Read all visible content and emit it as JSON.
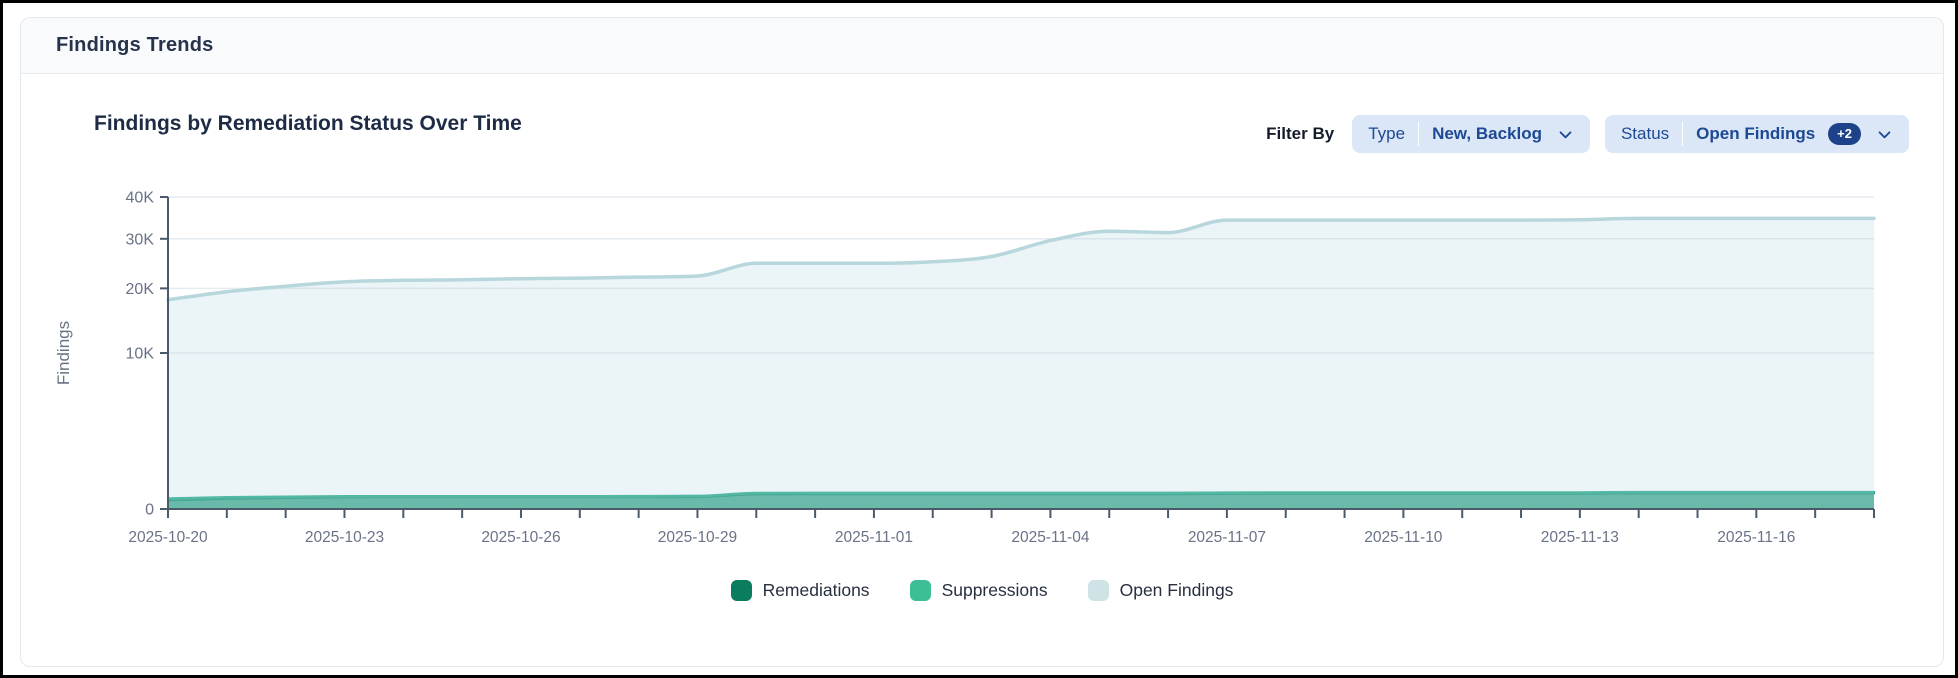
{
  "window": {
    "title": "Findings Trends"
  },
  "filters": {
    "label": "Filter By",
    "type": {
      "label": "Type",
      "value": "New, Backlog"
    },
    "status": {
      "label": "Status",
      "value": "Open Findings",
      "extra_badge": "+2"
    }
  },
  "legend": [
    {
      "label": "Remediations",
      "color": "#0b7c5e"
    },
    {
      "label": "Suppressions",
      "color": "#3cbf97"
    },
    {
      "label": "Open Findings",
      "color": "#cfe3e6"
    }
  ],
  "colors": {
    "axis": "#4b5a6b",
    "grid": "#e6ebf0",
    "tick_text": "#697386",
    "badge_bg": "#1d4289",
    "pill_bg": "#dbe7f6",
    "pill_text": "#1d4994"
  },
  "chart_data": {
    "type": "area",
    "title": "Findings by Remediation Status Over Time",
    "xlabel": "",
    "ylabel": "Findings",
    "y_scale": "sqrt",
    "ylim": [
      0,
      40000
    ],
    "grid": "horizontal",
    "legend_position": "bottom",
    "y_ticks": [
      {
        "value": 0,
        "label": "0"
      },
      {
        "value": 10000,
        "label": "10K"
      },
      {
        "value": 20000,
        "label": "20K"
      },
      {
        "value": 30000,
        "label": "30K"
      },
      {
        "value": 40000,
        "label": "40K"
      }
    ],
    "x_label_every_days": 3,
    "x": [
      "2025-10-20",
      "2025-10-21",
      "2025-10-22",
      "2025-10-23",
      "2025-10-24",
      "2025-10-25",
      "2025-10-26",
      "2025-10-27",
      "2025-10-28",
      "2025-10-29",
      "2025-10-30",
      "2025-10-31",
      "2025-11-01",
      "2025-11-02",
      "2025-11-03",
      "2025-11-04",
      "2025-11-05",
      "2025-11-06",
      "2025-11-07",
      "2025-11-08",
      "2025-11-09",
      "2025-11-10",
      "2025-11-11",
      "2025-11-12",
      "2025-11-13",
      "2025-11-14",
      "2025-11-15",
      "2025-11-16",
      "2025-11-17",
      "2025-11-18"
    ],
    "series": [
      {
        "name": "Remediations",
        "line_color": "#0b7a5e",
        "fill_color": "rgba(11,122,94,0.6)",
        "line_width": 2,
        "values": [
          30,
          42,
          50,
          55,
          57,
          57,
          57,
          57,
          57,
          58,
          88,
          90,
          90,
          90,
          90,
          90,
          90,
          90,
          94,
          96,
          96,
          96,
          96,
          96,
          96,
          100,
          100,
          100,
          100,
          100
        ]
      },
      {
        "name": "Suppressions",
        "line_color": "#2fae8e",
        "fill_color": "rgba(47,174,142,0.55)",
        "line_width": 2.5,
        "values": [
          45,
          56,
          62,
          66,
          67,
          67,
          67,
          67,
          68,
          70,
          105,
          106,
          106,
          106,
          106,
          106,
          106,
          106,
          110,
          112,
          112,
          112,
          112,
          112,
          112,
          117,
          117,
          117,
          117,
          117
        ]
      },
      {
        "name": "Open Findings",
        "line_color": "#b7d7dd",
        "fill_color": "rgba(184,216,222,0.28)",
        "line_width": 3.5,
        "values": [
          18000,
          19400,
          20400,
          21200,
          21500,
          21600,
          21800,
          21900,
          22100,
          22300,
          24800,
          24800,
          24800,
          25100,
          26200,
          29600,
          31700,
          31400,
          34300,
          34300,
          34300,
          34300,
          34300,
          34300,
          34400,
          34700,
          34700,
          34700,
          34700,
          34700
        ]
      }
    ]
  }
}
